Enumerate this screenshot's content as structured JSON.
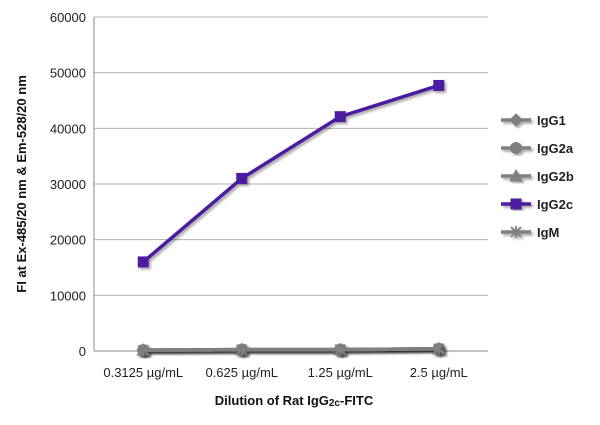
{
  "chart_data": {
    "type": "line",
    "title": "",
    "xlabel": "Dilution of Rat IgG2c-FITC",
    "xlabel_main": "Dilution of Rat IgG",
    "xlabel_sub": "2c",
    "xlabel_tail": "-FITC",
    "ylabel": "FI at Ex-485/20 nm & Em-528/20 nm",
    "ylim": [
      0,
      60000
    ],
    "yticks": [
      0,
      10000,
      20000,
      30000,
      40000,
      50000,
      60000
    ],
    "categories": [
      "0.3125 µg/mL",
      "0.625 µg/mL",
      "1.25 µg/mL",
      "2.5 µg/mL"
    ],
    "grid": true,
    "legend_position": "right",
    "series": [
      {
        "name": "IgG1",
        "marker": "diamond",
        "color": "#808080",
        "values": [
          150,
          250,
          250,
          400
        ]
      },
      {
        "name": "IgG2a",
        "marker": "circle",
        "color": "#808080",
        "values": [
          150,
          250,
          250,
          400
        ]
      },
      {
        "name": "IgG2b",
        "marker": "triangle",
        "color": "#808080",
        "values": [
          150,
          250,
          250,
          400
        ]
      },
      {
        "name": "IgG2c",
        "marker": "square",
        "color": "#4B1A9E",
        "values": [
          16000,
          31000,
          42100,
          47700
        ]
      },
      {
        "name": "IgM",
        "marker": "star",
        "color": "#808080",
        "values": [
          150,
          250,
          250,
          400
        ]
      }
    ]
  }
}
